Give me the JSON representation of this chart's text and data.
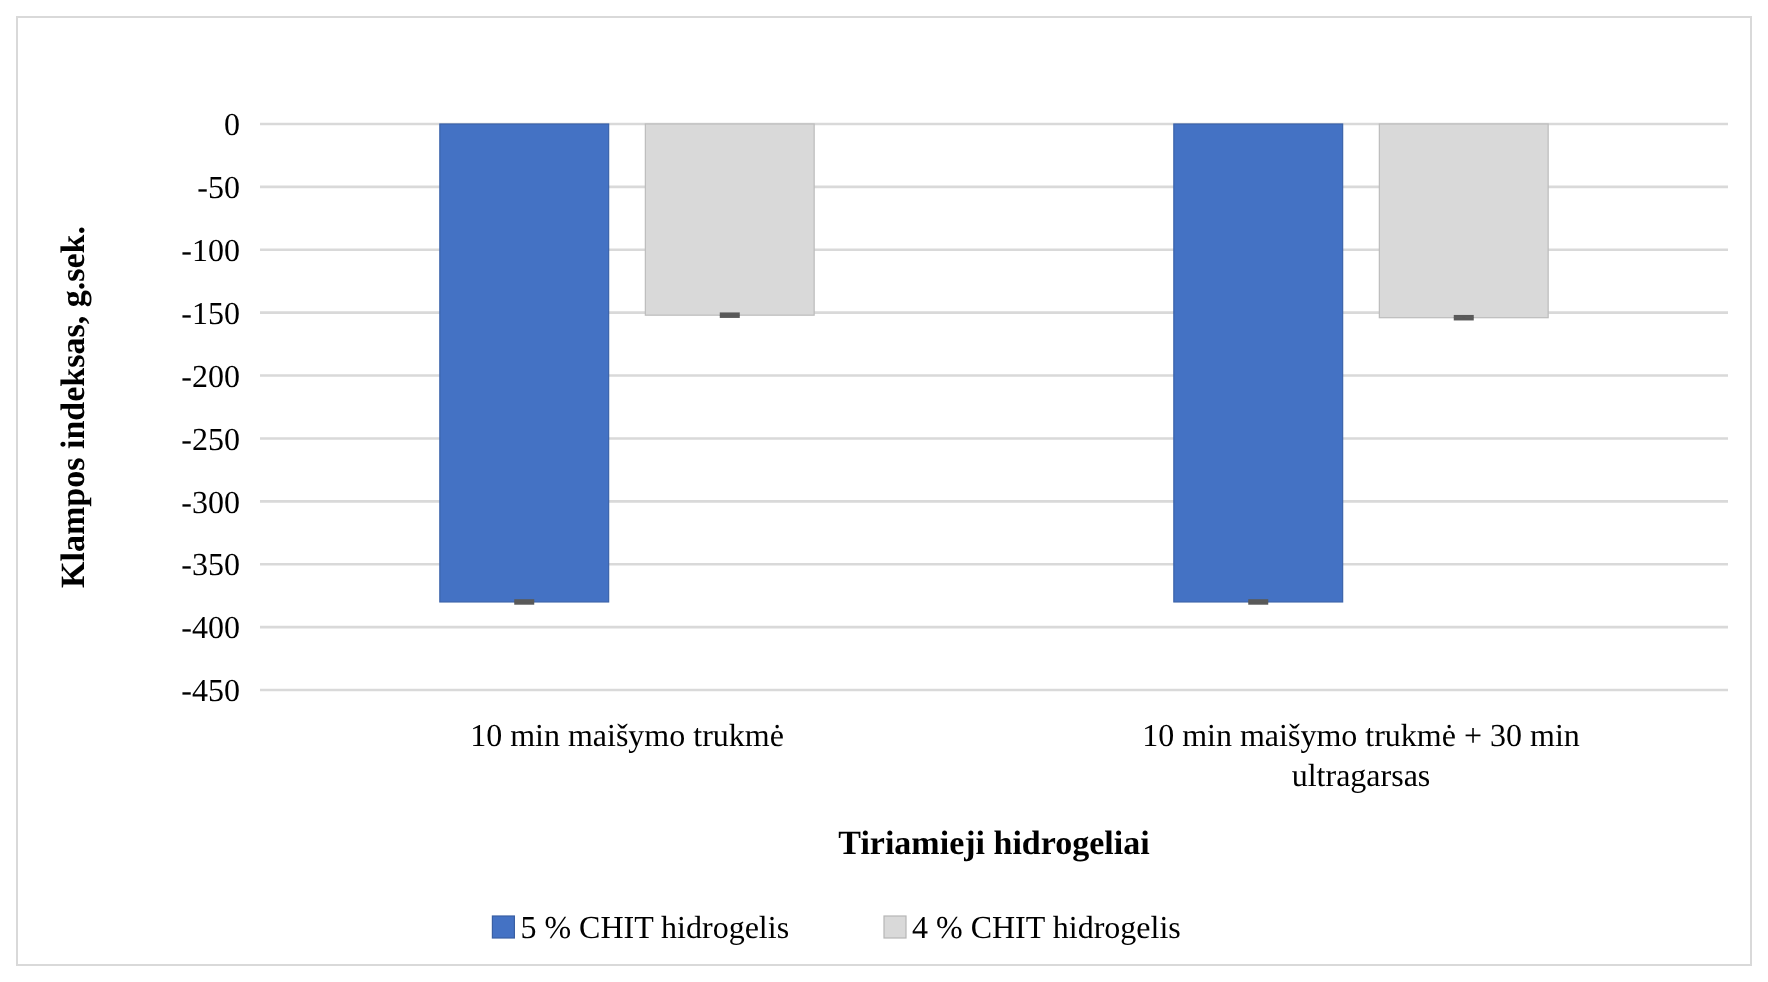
{
  "chart_data": {
    "type": "bar",
    "xlabel": "Tiriamieji hidrogeliai",
    "ylabel": "Klampos indeksas, g.sek.",
    "categories": [
      "10 min maišymo trukmė",
      "10 min maišymo trukmė + 30 min ultragarsas"
    ],
    "series": [
      {
        "name": "5 % CHIT hidrogelis",
        "color": "#4472c4",
        "values": [
          -380,
          -380
        ],
        "errors": [
          1,
          1
        ]
      },
      {
        "name": "4 % CHIT hidrogelis",
        "color": "#d9d9d9",
        "values": [
          -152,
          -154
        ],
        "errors": [
          1,
          1
        ]
      }
    ],
    "ylim": [
      -450,
      0
    ],
    "yticks": [
      0,
      -50,
      -100,
      -150,
      -200,
      -250,
      -300,
      -350,
      -400,
      -450
    ],
    "grid": "y",
    "legend": "bottom"
  }
}
